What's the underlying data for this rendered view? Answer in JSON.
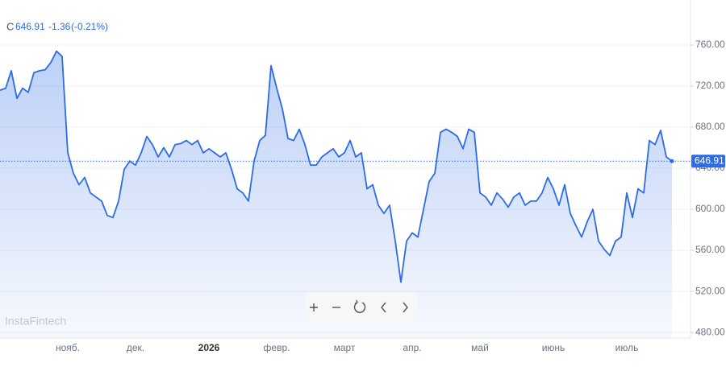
{
  "chart_data": {
    "type": "line",
    "symbol": "C",
    "current_price": 646.91,
    "change": -1.36,
    "change_percent": "(-0.21%)",
    "watermark": "InstaFintech",
    "categories": [
      null,
      null,
      null,
      null,
      null,
      null,
      null,
      null,
      null,
      null,
      null,
      null,
      "нояб.",
      null,
      null,
      null,
      null,
      null,
      null,
      null,
      null,
      null,
      null,
      null,
      "дек.",
      null,
      null,
      null,
      null,
      null,
      null,
      null,
      null,
      null,
      null,
      null,
      null,
      "2026",
      null,
      null,
      null,
      null,
      null,
      null,
      null,
      null,
      null,
      null,
      null,
      "февр.",
      null,
      null,
      null,
      null,
      null,
      null,
      null,
      null,
      null,
      null,
      null,
      "март",
      null,
      null,
      null,
      null,
      null,
      null,
      null,
      null,
      null,
      null,
      null,
      "апр.",
      null,
      null,
      null,
      null,
      null,
      null,
      null,
      null,
      null,
      null,
      null,
      "май",
      null,
      null,
      null,
      null,
      null,
      null,
      null,
      null,
      null,
      null,
      null,
      null,
      "июнь",
      null,
      null,
      null,
      null,
      null,
      null,
      null,
      null,
      null,
      null,
      null,
      null,
      "июль",
      null,
      null,
      null,
      null,
      null,
      null,
      null,
      null
    ],
    "series": [
      {
        "name": "C",
        "color": "#2e6be6",
        "values": [
          716,
          718,
          735,
          708,
          718,
          714,
          733,
          735,
          736,
          743,
          754,
          749,
          655,
          635,
          624,
          631,
          616,
          612,
          608,
          594,
          592,
          608,
          639,
          647,
          643,
          655,
          671,
          663,
          651,
          660,
          651,
          663,
          664,
          667,
          663,
          667,
          655,
          659,
          655,
          651,
          655,
          639,
          620,
          616,
          608,
          647,
          667,
          672,
          740,
          718,
          698,
          669,
          667,
          678,
          663,
          643,
          643,
          651,
          655,
          659,
          651,
          655,
          667,
          651,
          655,
          620,
          624,
          604,
          596,
          604,
          569,
          529,
          569,
          577,
          573,
          600,
          627,
          635,
          675,
          678,
          675,
          671,
          659,
          678,
          675,
          616,
          612,
          604,
          616,
          610,
          602,
          612,
          616,
          604,
          608,
          608,
          616,
          631,
          620,
          604,
          624,
          596,
          584,
          573,
          588,
          600,
          569,
          561,
          555,
          569,
          573,
          616,
          592,
          620,
          616,
          667,
          663,
          677,
          651,
          646.91
        ]
      }
    ],
    "ylim": [
      474.6,
      803.9
    ],
    "yticks": [
      {
        "value": 480,
        "label": "480.00"
      },
      {
        "value": 520,
        "label": "520.00"
      },
      {
        "value": 560,
        "label": "560.00"
      },
      {
        "value": 600,
        "label": "600.00"
      },
      {
        "value": 640,
        "label": "640.00"
      },
      {
        "value": 680,
        "label": "680.00"
      },
      {
        "value": 720,
        "label": "720.00"
      },
      {
        "value": 760,
        "label": "760.00"
      }
    ],
    "grid": true
  }
}
